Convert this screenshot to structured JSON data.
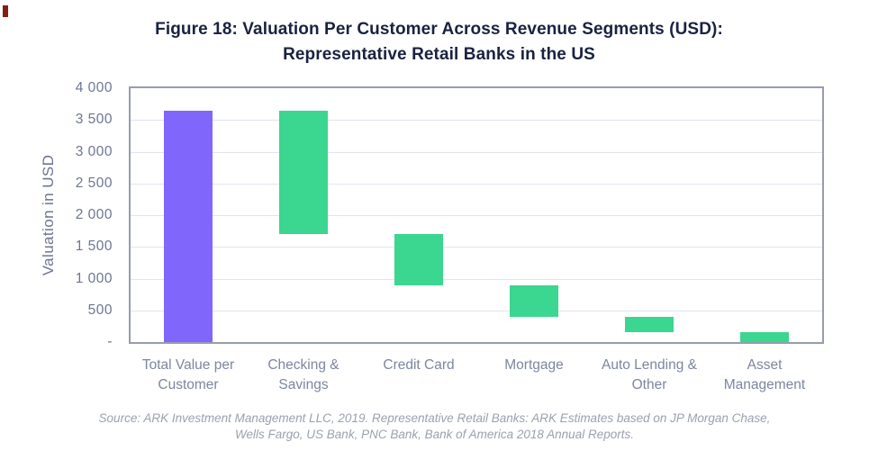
{
  "colors": {
    "title_text": "#1a2240",
    "axis_text": "#6d7593",
    "category_text": "#7d86a0",
    "source_text": "#9aa1ae",
    "gridline": "#e2e3f1",
    "plot_border": "#979cb0",
    "bar_purple": "#8166fb",
    "bar_green": "#3bd68f",
    "corner_mark": "#871b13"
  },
  "title": {
    "line1": "Figure 18: Valuation Per Customer Across Revenue Segments (USD):",
    "line2": "Representative Retail Banks in the US"
  },
  "chart_data": {
    "type": "bar",
    "subtype": "waterfall",
    "title": "Figure 18: Valuation Per Customer Across Revenue Segments (USD): Representative Retail Banks in the US",
    "xlabel": "",
    "ylabel": "Valuation in USD",
    "ylim": [
      0,
      4000
    ],
    "grid": "horizontal gridlines every 500",
    "legend": "none",
    "categories": [
      "Total Value per Customer",
      "Checking & Savings",
      "Credit Card",
      "Mortgage",
      "Auto Lending & Other",
      "Asset Management"
    ],
    "yticks": [
      {
        "value": 0,
        "label": "-"
      },
      {
        "value": 500,
        "label": "500"
      },
      {
        "value": 1000,
        "label": "1 000"
      },
      {
        "value": 1500,
        "label": "1 500"
      },
      {
        "value": 2000,
        "label": "2 000"
      },
      {
        "value": 2500,
        "label": "2 500"
      },
      {
        "value": 3000,
        "label": "3 000"
      },
      {
        "value": 3500,
        "label": "3 500"
      },
      {
        "value": 4000,
        "label": "4 000"
      }
    ],
    "bars": [
      {
        "label": "Total Value per Customer",
        "start": 0,
        "end": 3650,
        "value": 3650,
        "color": "#8166fb"
      },
      {
        "label": "Checking & Savings",
        "start": 1700,
        "end": 3650,
        "value": 1950,
        "color": "#3bd68f"
      },
      {
        "label": "Credit Card",
        "start": 900,
        "end": 1700,
        "value": 800,
        "color": "#3bd68f"
      },
      {
        "label": "Mortgage",
        "start": 400,
        "end": 900,
        "value": 500,
        "color": "#3bd68f"
      },
      {
        "label": "Auto Lending & Other",
        "start": 150,
        "end": 400,
        "value": 250,
        "color": "#3bd68f"
      },
      {
        "label": "Asset Management",
        "start": 0,
        "end": 150,
        "value": 150,
        "color": "#3bd68f"
      }
    ]
  },
  "source": {
    "line1": "Source: ARK Investment Management LLC, 2019. Representative Retail Banks: ARK Estimates based on JP Morgan Chase,",
    "line2": "Wells Fargo, US Bank, PNC Bank, Bank of America 2018 Annual Reports."
  }
}
